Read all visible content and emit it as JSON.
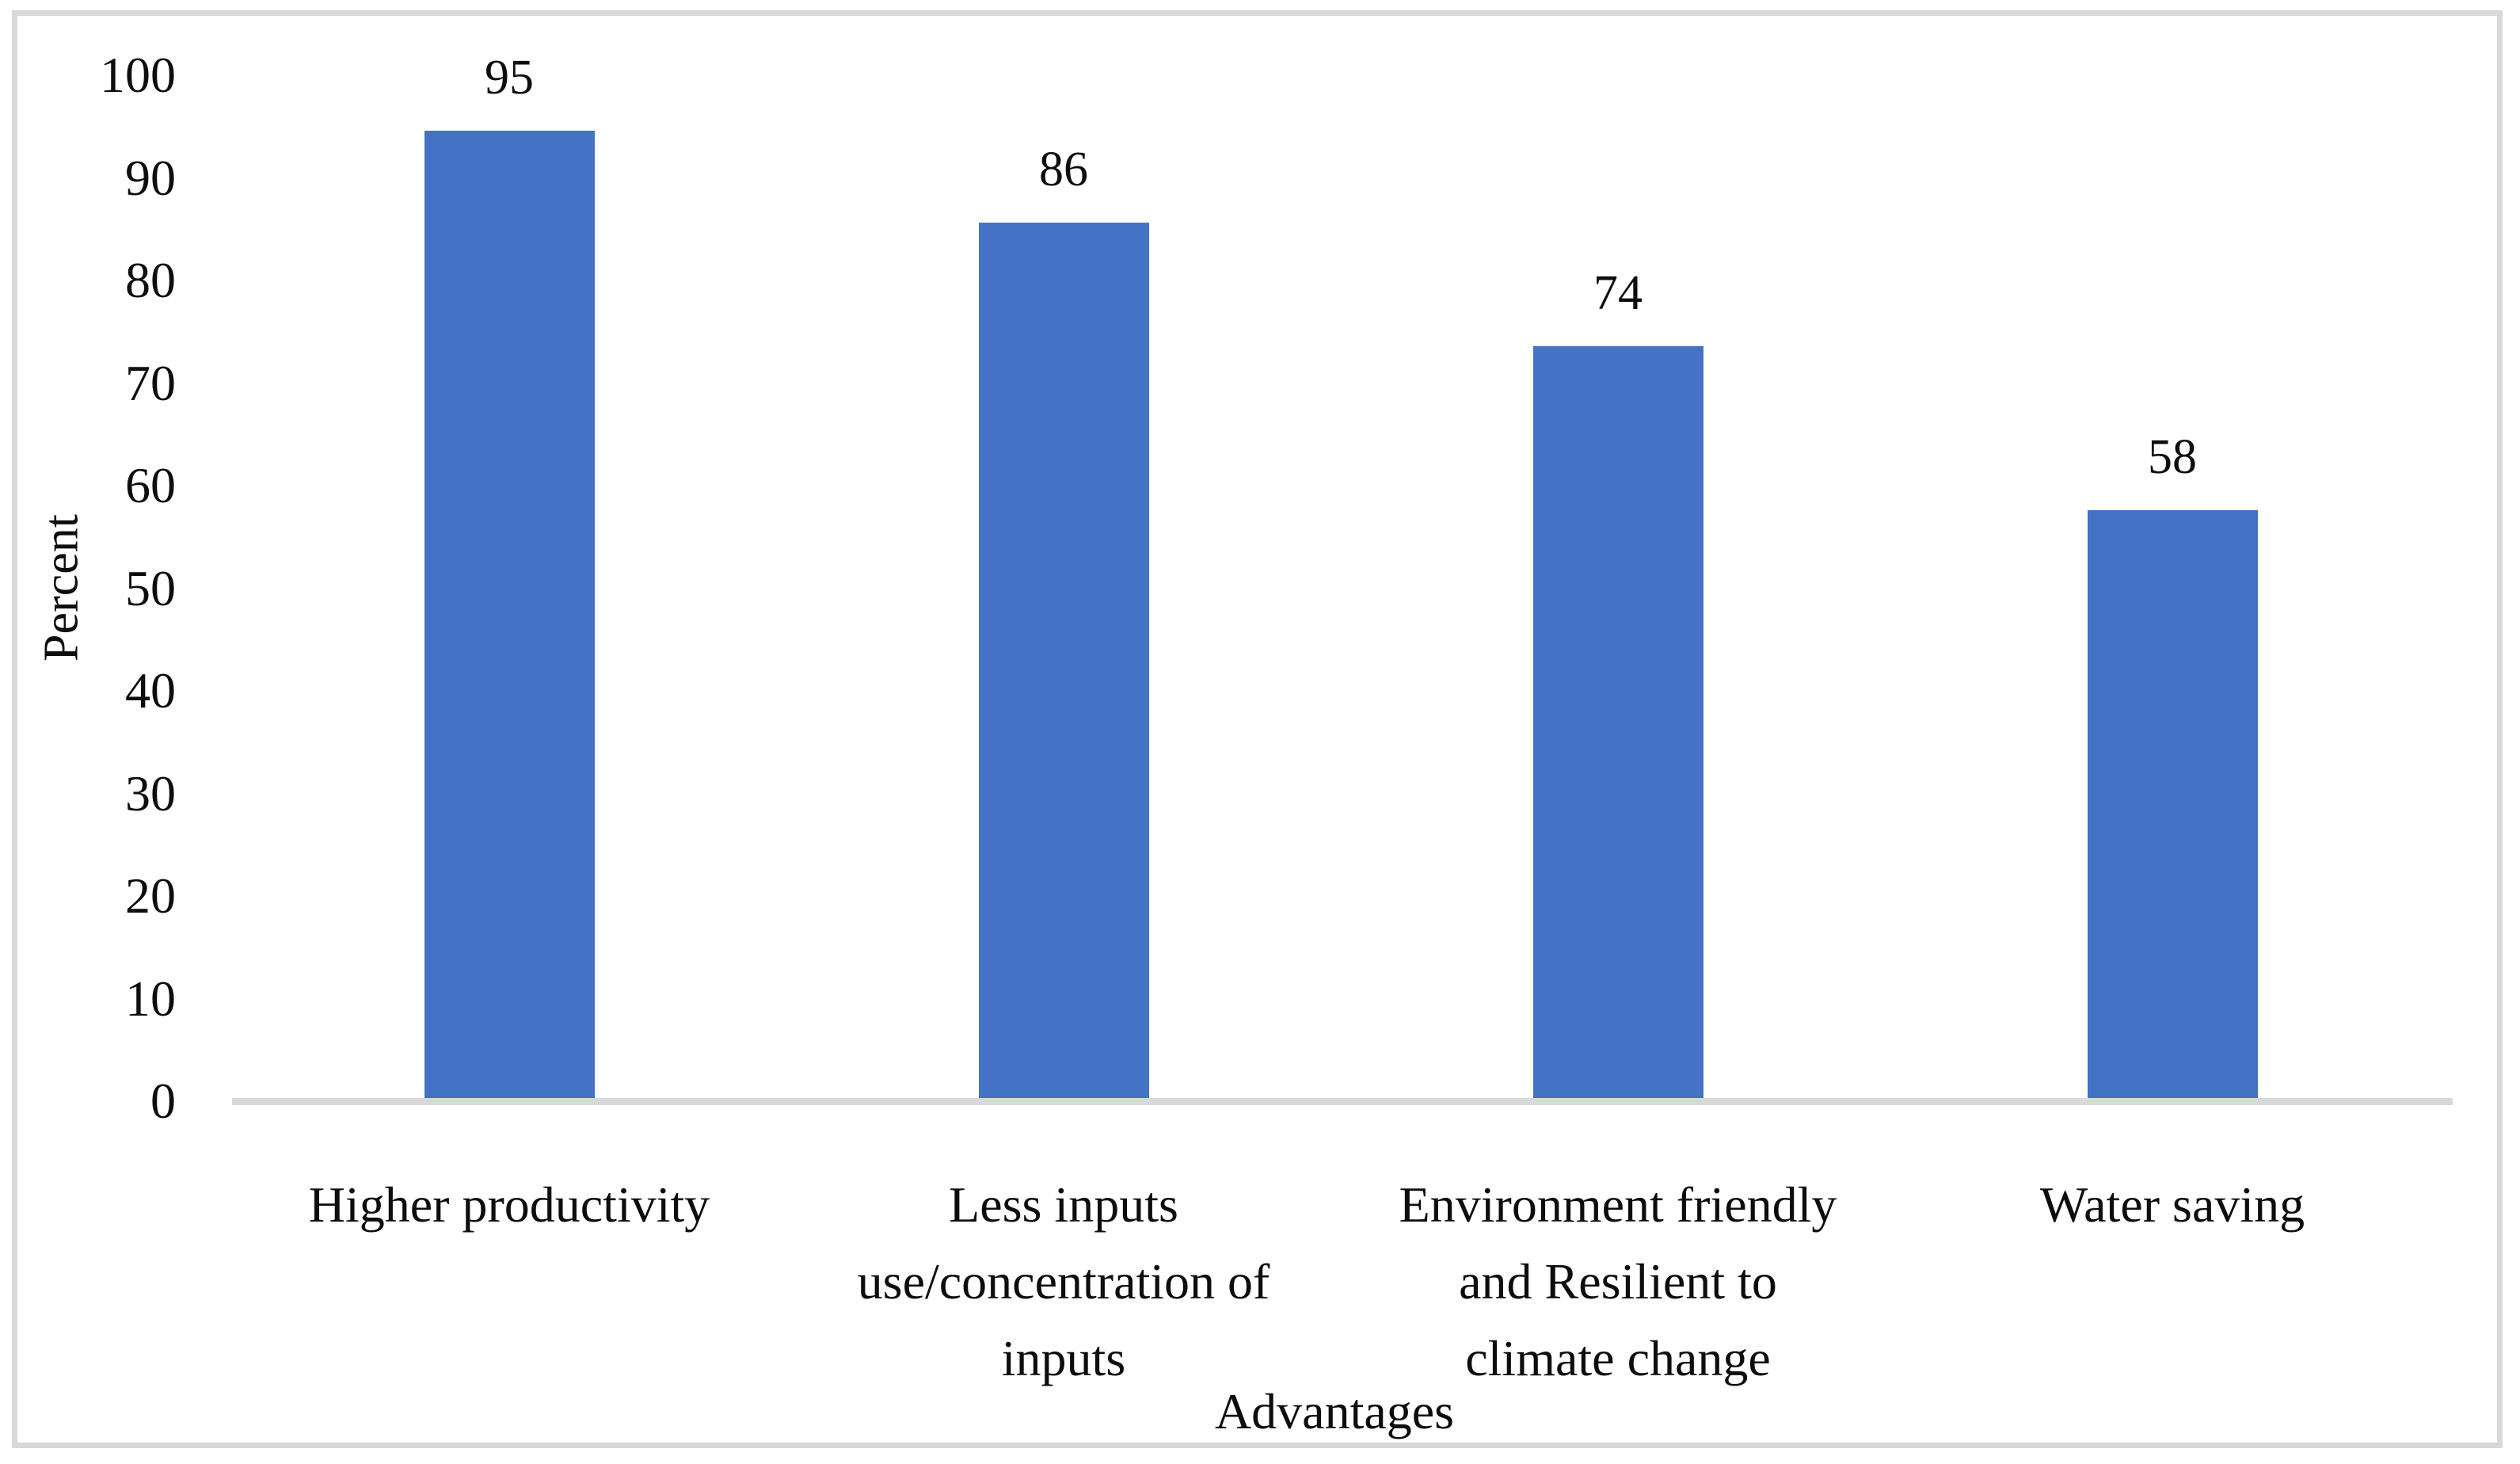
{
  "chart_data": {
    "type": "bar",
    "title": "",
    "categories": [
      "Higher productivity",
      "Less inputs use/concentration of inputs",
      "Environment friendly and Resilient to climate change",
      "Water saving"
    ],
    "category_label_lines": [
      "Higher productivity",
      "Less inputs\nuse/concentration of\ninputs",
      "Environment friendly\nand Resilient to\nclimate change",
      "Water saving"
    ],
    "values": [
      95,
      86,
      74,
      58
    ],
    "value_labels": [
      "95",
      "86",
      "74",
      "58"
    ],
    "xlabel": "Advantages",
    "ylabel": "Percent",
    "ylim": [
      0,
      100
    ],
    "yticks": [
      0,
      10,
      20,
      30,
      40,
      50,
      60,
      70,
      80,
      90,
      100
    ],
    "grid": false,
    "legend_position": "none",
    "bar_color": "#4472C4",
    "axis_line_color": "#D9D9D9",
    "frame_color": "#D8D8D8",
    "text_color": "#0D0D0D",
    "background_color": "#FFFFFF"
  }
}
